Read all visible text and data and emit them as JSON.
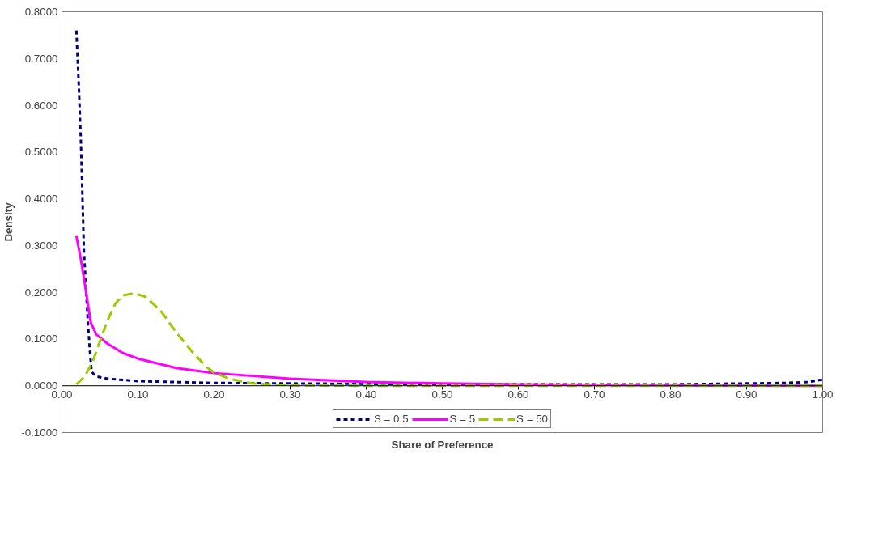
{
  "chart_data": {
    "type": "line",
    "xlabel": "Share of Preference",
    "ylabel": "Density",
    "xlim": [
      0,
      1
    ],
    "ylim": [
      -0.1,
      0.8
    ],
    "xticks": [
      {
        "value": 0,
        "label": "0.00"
      },
      {
        "value": 0.1,
        "label": "0.10"
      },
      {
        "value": 0.2,
        "label": "0.20"
      },
      {
        "value": 0.3,
        "label": "0.30"
      },
      {
        "value": 0.4,
        "label": "0.40"
      },
      {
        "value": 0.5,
        "label": "0.50"
      },
      {
        "value": 0.6,
        "label": "0.60"
      },
      {
        "value": 0.7,
        "label": "0.70"
      },
      {
        "value": 0.8,
        "label": "0.80"
      },
      {
        "value": 0.9,
        "label": "0.90"
      },
      {
        "value": 1,
        "label": "1.00"
      }
    ],
    "yticks": [
      {
        "value": -0.1,
        "label": "-0.1000"
      },
      {
        "value": 0,
        "label": "0.0000"
      },
      {
        "value": 0.1,
        "label": "0.1000"
      },
      {
        "value": 0.2,
        "label": "0.2000"
      },
      {
        "value": 0.3,
        "label": "0.3000"
      },
      {
        "value": 0.4,
        "label": "0.4000"
      },
      {
        "value": 0.5,
        "label": "0.5000"
      },
      {
        "value": 0.6,
        "label": "0.6000"
      },
      {
        "value": 0.7,
        "label": "0.7000"
      },
      {
        "value": 0.8,
        "label": "0.8000"
      }
    ],
    "grid": false,
    "legend": "bottom",
    "series": [
      {
        "name": "S = 0.5",
        "color": "#000080",
        "line_style": "dotted",
        "x": [
          0.019,
          0.022,
          0.025,
          0.027,
          0.029,
          0.032,
          0.034,
          0.037,
          0.039,
          0.045,
          0.06,
          0.1,
          0.2,
          0.3,
          0.4,
          0.5,
          0.6,
          0.7,
          0.8,
          0.85,
          0.9,
          0.95,
          0.98,
          1.0
        ],
        "values": [
          0.76,
          0.65,
          0.52,
          0.405,
          0.286,
          0.2,
          0.139,
          0.07,
          0.03,
          0.02,
          0.015,
          0.01,
          0.006,
          0.005,
          0.004,
          0.003,
          0.003,
          0.003,
          0.003,
          0.004,
          0.005,
          0.006,
          0.008,
          0.013
        ]
      },
      {
        "name": "S = 5",
        "color": "#ff00ff",
        "line_style": "solid",
        "x": [
          0.019,
          0.025,
          0.031,
          0.038,
          0.045,
          0.06,
          0.08,
          0.1,
          0.15,
          0.2,
          0.3,
          0.4,
          0.5,
          0.6,
          0.8,
          1.0
        ],
        "values": [
          0.32,
          0.27,
          0.208,
          0.135,
          0.11,
          0.09,
          0.07,
          0.058,
          0.038,
          0.027,
          0.015,
          0.008,
          0.005,
          0.003,
          0.001,
          0.0
        ]
      },
      {
        "name": "S = 50",
        "color": "#99cc00",
        "line_style": "dashed",
        "x": [
          0.019,
          0.03,
          0.04,
          0.05,
          0.06,
          0.07,
          0.08,
          0.095,
          0.11,
          0.13,
          0.15,
          0.17,
          0.19,
          0.2,
          0.22,
          0.25,
          0.3,
          0.4,
          1.0
        ],
        "values": [
          0.003,
          0.02,
          0.05,
          0.095,
          0.14,
          0.175,
          0.193,
          0.198,
          0.19,
          0.16,
          0.115,
          0.075,
          0.04,
          0.028,
          0.015,
          0.005,
          0.001,
          0.0,
          0.0
        ]
      }
    ]
  }
}
